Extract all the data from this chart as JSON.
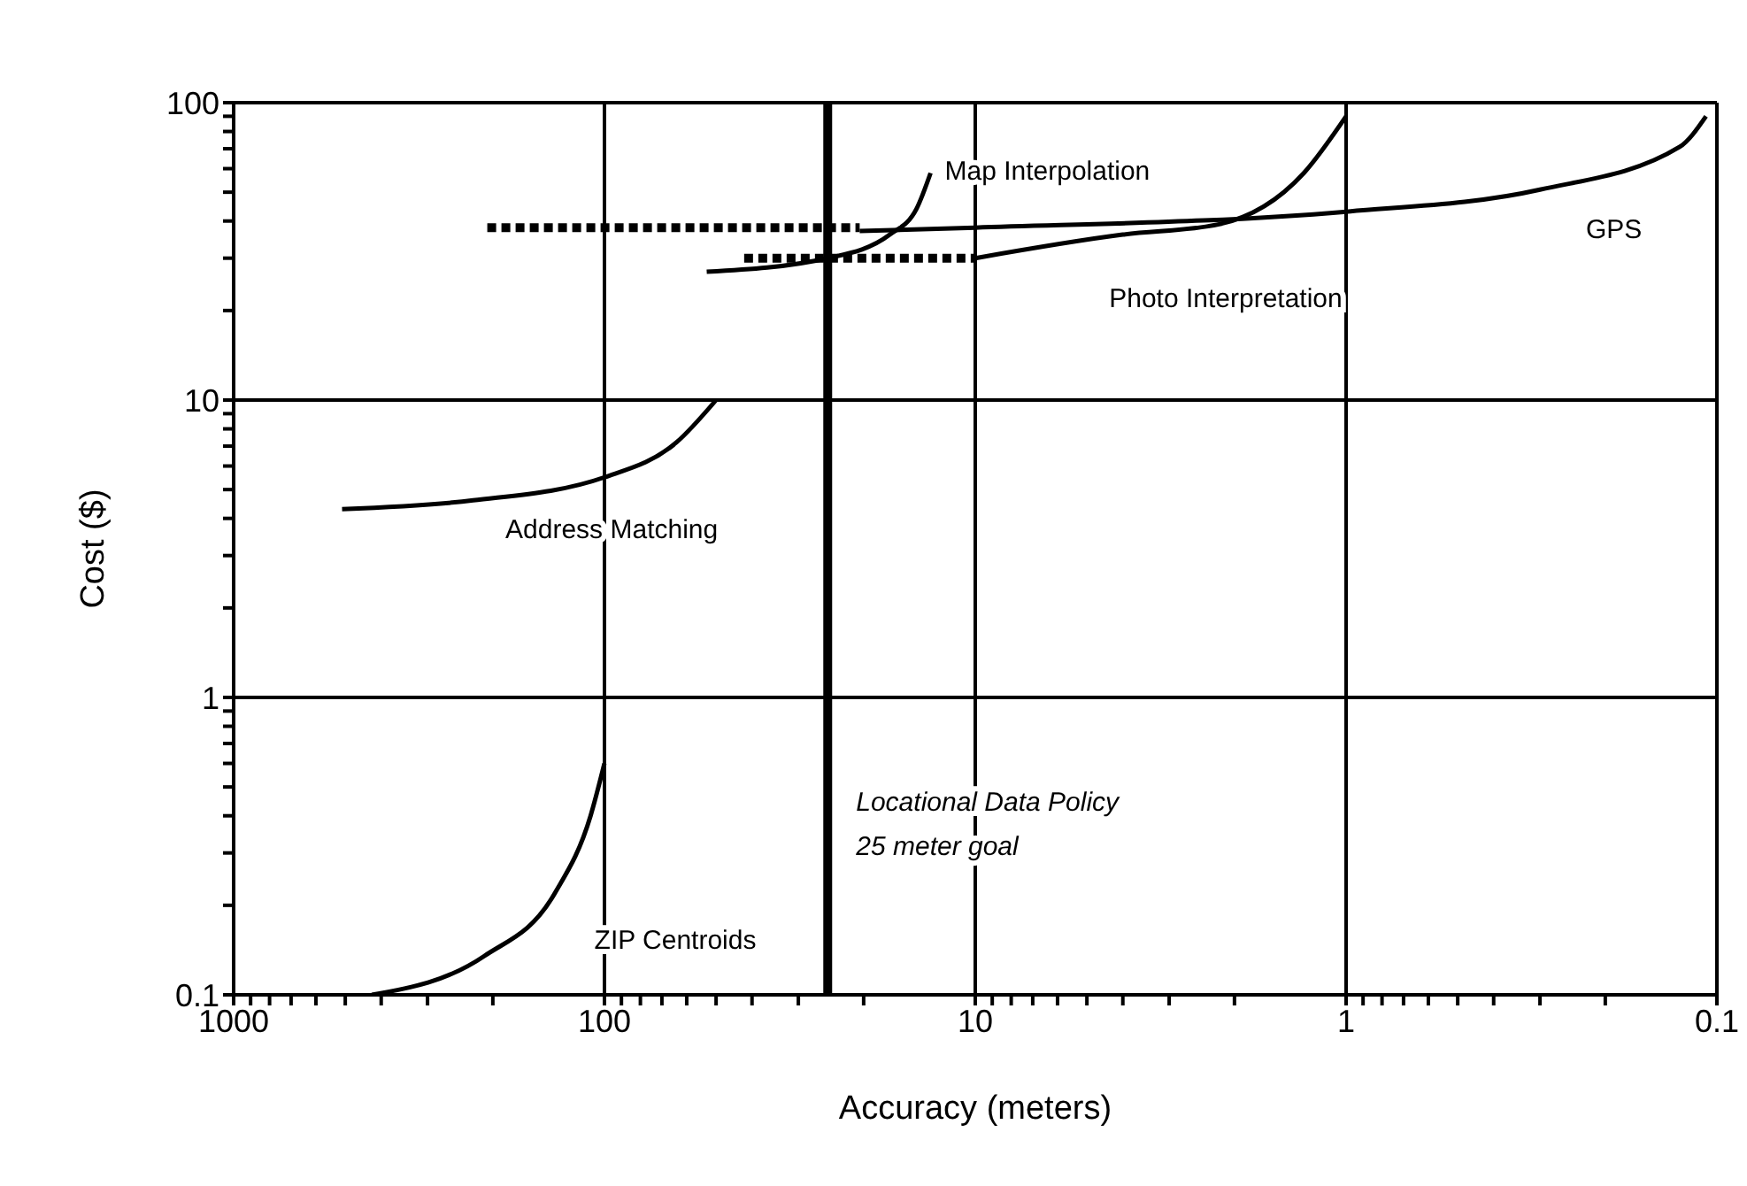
{
  "chart_data": {
    "type": "line",
    "xlabel": "Accuracy (meters)",
    "ylabel": "Cost ($)",
    "log": "xy",
    "grid": true,
    "legend": false,
    "marker": "none",
    "line_style": "solid",
    "xlim": [
      1000,
      0.1
    ],
    "ylim": [
      0.1,
      100
    ],
    "xticks": [
      1000,
      {
        "value": 900,
        "label": null
      },
      {
        "value": 800,
        "label": null
      },
      {
        "value": 700,
        "label": null
      },
      {
        "value": 600,
        "label": null
      },
      {
        "value": 500,
        "label": null
      },
      {
        "value": 400,
        "label": null
      },
      {
        "value": 300,
        "label": null
      },
      {
        "value": 200,
        "label": null
      },
      100,
      {
        "value": 90,
        "label": null
      },
      {
        "value": 80,
        "label": null
      },
      {
        "value": 70,
        "label": null
      },
      {
        "value": 60,
        "label": null
      },
      {
        "value": 50,
        "label": null
      },
      {
        "value": 40,
        "label": null
      },
      {
        "value": 30,
        "label": null
      },
      {
        "value": 20,
        "label": null
      },
      10,
      {
        "value": 9,
        "label": null
      },
      {
        "value": 8,
        "label": null
      },
      {
        "value": 7,
        "label": null
      },
      {
        "value": 6,
        "label": null
      },
      {
        "value": 5,
        "label": null
      },
      {
        "value": 4,
        "label": null
      },
      {
        "value": 3,
        "label": null
      },
      {
        "value": 2,
        "label": null
      },
      1,
      {
        "value": 0.9,
        "label": null
      },
      {
        "value": 0.8,
        "label": null
      },
      {
        "value": 0.7,
        "label": null
      },
      {
        "value": 0.6,
        "label": null
      },
      {
        "value": 0.5,
        "label": null
      },
      {
        "value": 0.4,
        "label": null
      },
      {
        "value": 0.3,
        "label": null
      },
      {
        "value": 0.2,
        "label": null
      },
      0.1
    ],
    "yticks": [
      0.1,
      {
        "value": 0.2,
        "label": null
      },
      {
        "value": 0.3,
        "label": null
      },
      {
        "value": 0.4,
        "label": null
      },
      {
        "value": 0.5,
        "label": null
      },
      {
        "value": 0.6,
        "label": null
      },
      {
        "value": 0.7,
        "label": null
      },
      {
        "value": 0.8,
        "label": null
      },
      {
        "value": 0.9,
        "label": null
      },
      1,
      {
        "value": 2,
        "label": null
      },
      {
        "value": 3,
        "label": null
      },
      {
        "value": 4,
        "label": null
      },
      {
        "value": 5,
        "label": null
      },
      {
        "value": 6,
        "label": null
      },
      {
        "value": 7,
        "label": null
      },
      {
        "value": 8,
        "label": null
      },
      {
        "value": 9,
        "label": null
      },
      10,
      {
        "value": 20,
        "label": null
      },
      {
        "value": 30,
        "label": null
      },
      {
        "value": 40,
        "label": null
      },
      {
        "value": 50,
        "label": null
      },
      {
        "value": 60,
        "label": null
      },
      {
        "value": 70,
        "label": null
      },
      {
        "value": 80,
        "label": null
      },
      {
        "value": 90,
        "label": null
      },
      100
    ],
    "ref_lines": [
      {
        "axis": "x",
        "value": 25,
        "label": "Locational Data Policy\n25 meter goal",
        "color": "#000000"
      }
    ],
    "series": [
      {
        "name": "ZIP Centroids",
        "color": "#000000",
        "x": [
          424,
          211,
          136,
          109,
          100
        ],
        "values": [
          0.1,
          0.135,
          0.22,
          0.4,
          0.6
        ]
      },
      {
        "name": "Address Matching",
        "color": "#000000",
        "x": [
          510,
          226,
          100,
          64,
          50
        ],
        "values": [
          4.3,
          4.6,
          5.5,
          7.2,
          10
        ]
      },
      {
        "name": "Map Interpolation",
        "color": "#000000",
        "x": [
          53,
          25,
          17,
          14.4,
          13.2
        ],
        "values": [
          27,
          30,
          36,
          44,
          58
        ]
      },
      {
        "name": "Photo Interpretation",
        "color": "#000000",
        "x": [
          10,
          4,
          2.2,
          1.3,
          1
        ],
        "values": [
          30,
          36,
          39,
          58,
          90
        ]
      },
      {
        "name": "GPS",
        "color": "#000000",
        "x": [
          20.5,
          10,
          1,
          0.3,
          0.126,
          0.107
        ],
        "values": [
          37,
          38,
          43,
          51,
          71,
          90
        ]
      },
      {
        "color": "#000000",
        "line_style": "dotted",
        "x": [
          207,
          20.5
        ],
        "values": [
          38,
          38
        ]
      },
      {
        "color": "#000000",
        "line_style": "dotted",
        "x": [
          42,
          10
        ],
        "values": [
          30,
          30
        ]
      }
    ]
  }
}
